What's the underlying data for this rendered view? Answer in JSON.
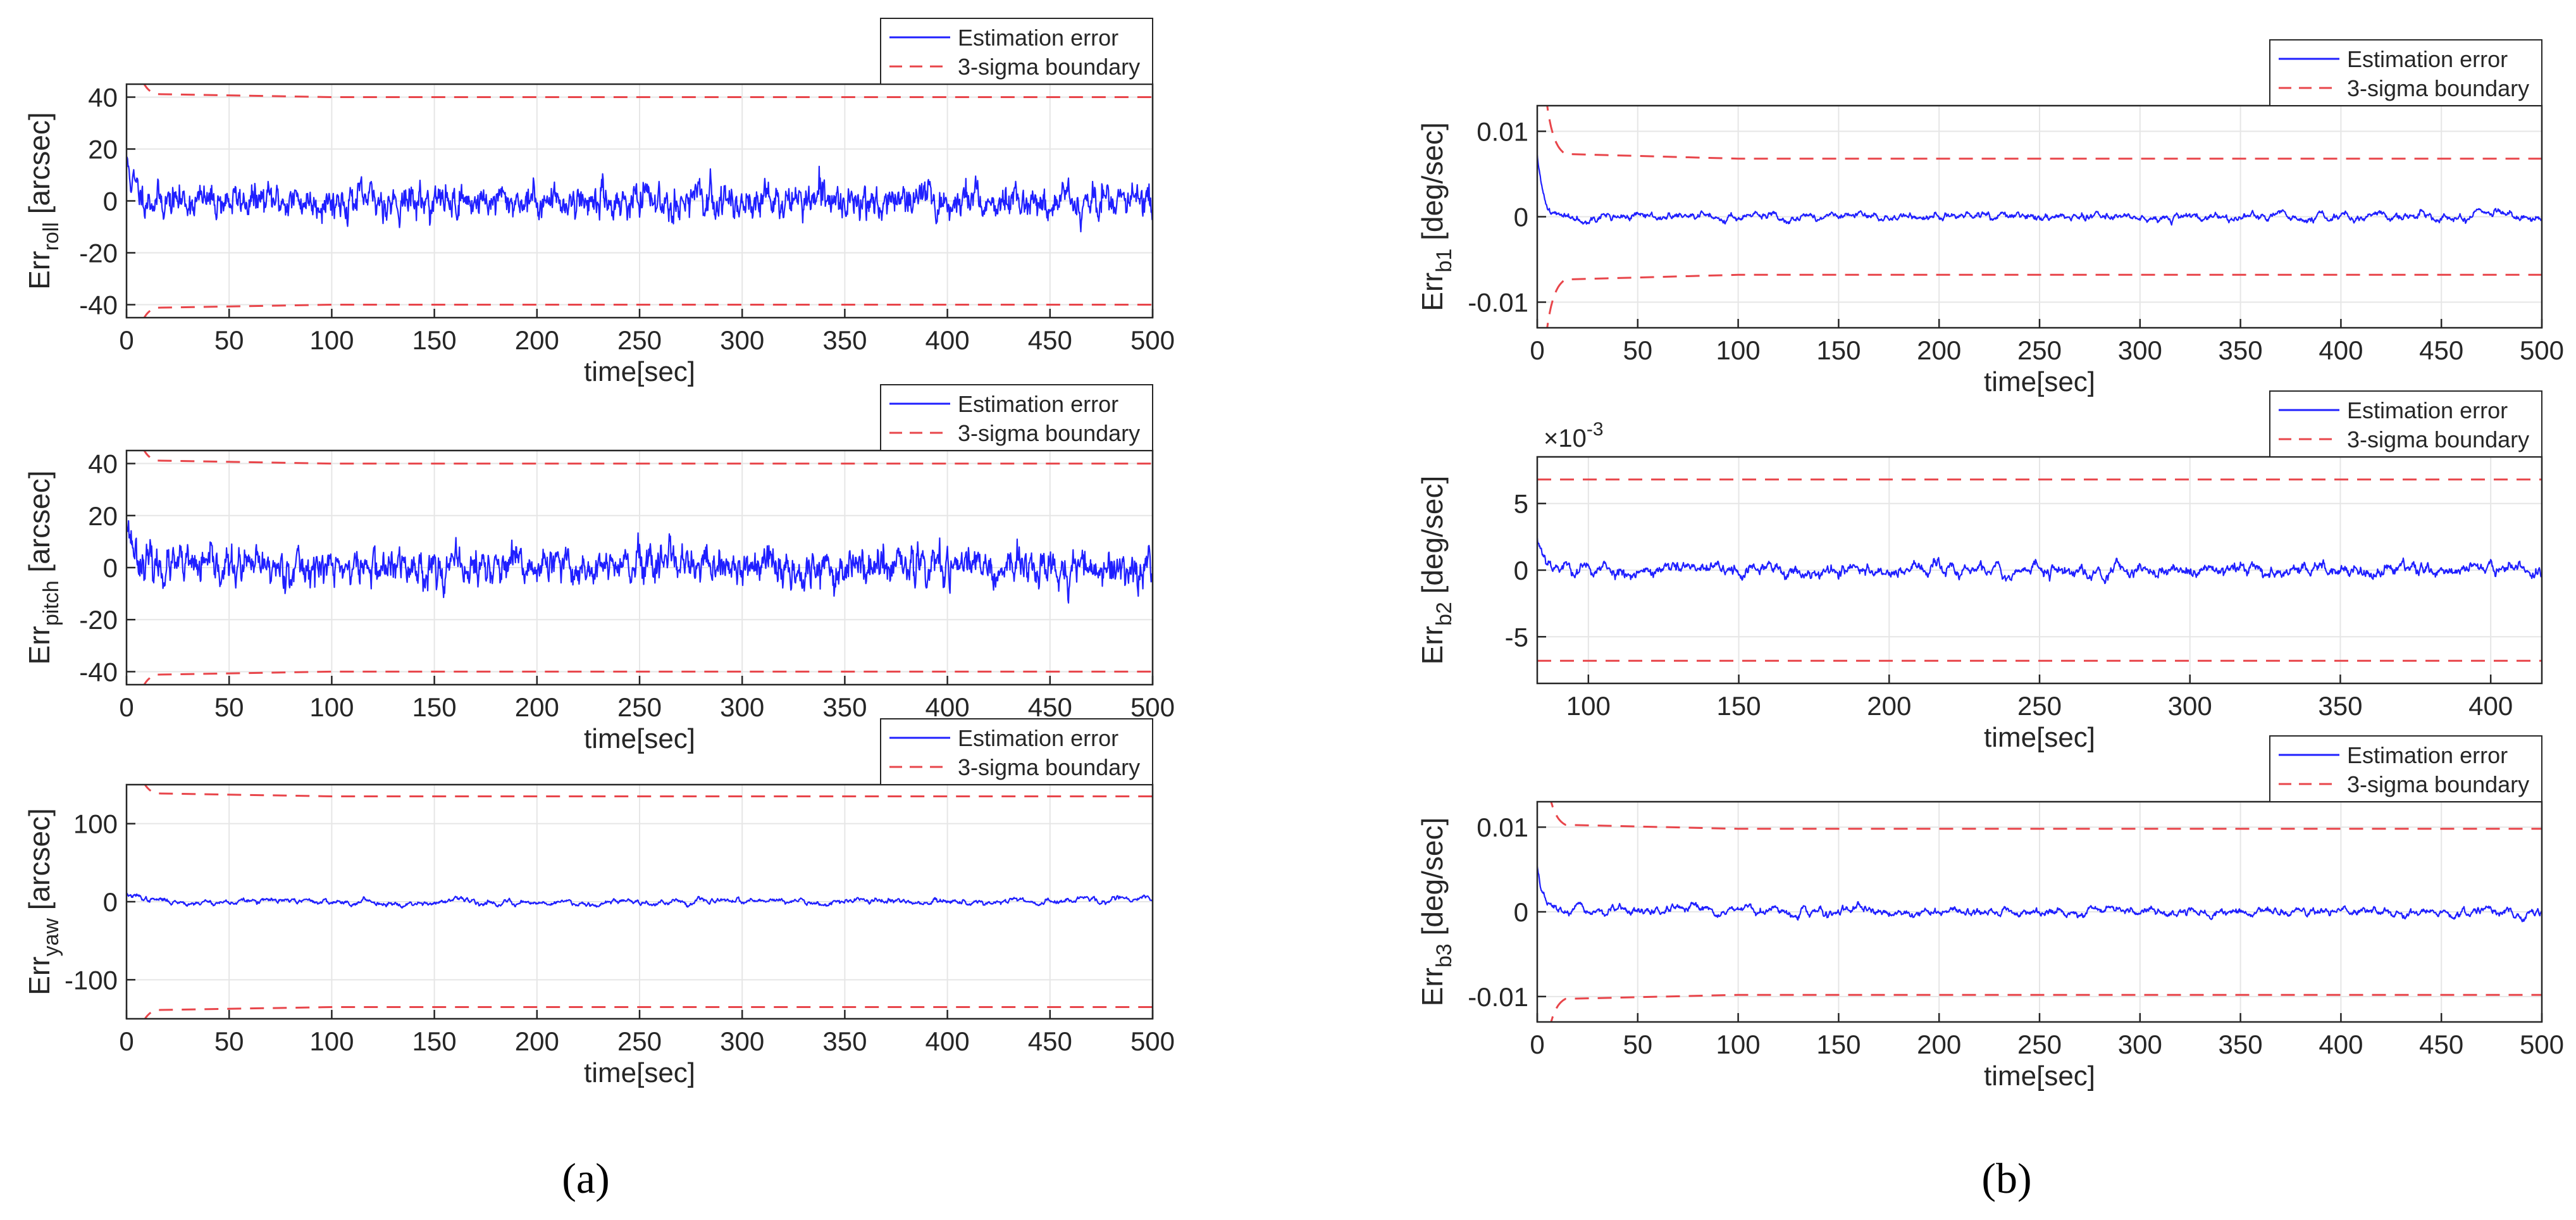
{
  "panel_labels": {
    "a": "(a)",
    "b": "(b)"
  },
  "colors": {
    "error": "#1f1fff",
    "sigma": "#e8454a",
    "grid": "#e6e6e6",
    "axis": "#262626"
  },
  "chart_data": [
    {
      "id": "roll",
      "type": "line",
      "panel": "a",
      "ylabel": {
        "base": "Err",
        "sub": "roll",
        "unit": " [arcsec]"
      },
      "xlabel": "time[sec]",
      "xlim": [
        0,
        500
      ],
      "ylim": [
        -45,
        45
      ],
      "xticks": [
        0,
        50,
        100,
        150,
        200,
        250,
        300,
        350,
        400,
        450,
        500
      ],
      "yticks": [
        -40,
        -20,
        0,
        20,
        40
      ],
      "sigma": 40,
      "sigma_start": 90,
      "sigma_settle": 15,
      "error": {
        "initial": 15,
        "decay": 4,
        "amplitude": 4.5,
        "smooth": 0.35,
        "seed": 11
      },
      "legend": {
        "position": "top-right",
        "entries": [
          "Estimation error",
          "3-sigma boundary"
        ]
      },
      "grid": true
    },
    {
      "id": "pitch",
      "type": "line",
      "panel": "a",
      "ylabel": {
        "base": "Err",
        "sub": "pitch",
        "unit": " [arcsec]"
      },
      "xlabel": "time[sec]",
      "xlim": [
        0,
        500
      ],
      "ylim": [
        -45,
        45
      ],
      "xticks": [
        0,
        50,
        100,
        150,
        200,
        250,
        300,
        350,
        400,
        450,
        500
      ],
      "yticks": [
        -40,
        -20,
        0,
        20,
        40
      ],
      "sigma": 40,
      "sigma_start": 90,
      "sigma_settle": 15,
      "error": {
        "initial": 20,
        "decay": 4,
        "amplitude": 5,
        "smooth": 0.35,
        "seed": 23
      },
      "legend": {
        "position": "top-right",
        "entries": [
          "Estimation error",
          "3-sigma boundary"
        ]
      },
      "grid": true
    },
    {
      "id": "yaw",
      "type": "line",
      "panel": "a",
      "ylabel": {
        "base": "Err",
        "sub": "yaw",
        "unit": " [arcsec]"
      },
      "xlabel": "time[sec]",
      "xlim": [
        0,
        500
      ],
      "ylim": [
        -150,
        150
      ],
      "xticks": [
        0,
        50,
        100,
        150,
        200,
        250,
        300,
        350,
        400,
        450,
        500
      ],
      "yticks": [
        -100,
        0,
        100
      ],
      "sigma": 135,
      "sigma_start": 300,
      "sigma_settle": 15,
      "error": {
        "initial": 10,
        "decay": 8,
        "amplitude": 8,
        "smooth": 0.08,
        "seed": 37
      },
      "legend": {
        "position": "top-right",
        "entries": [
          "Estimation error",
          "3-sigma boundary"
        ]
      },
      "grid": true
    },
    {
      "id": "b1",
      "type": "line",
      "panel": "b",
      "ylabel": {
        "base": "Err",
        "sub": "b1",
        "unit": " [deg/sec]"
      },
      "xlabel": "time[sec]",
      "xlim": [
        0,
        500
      ],
      "ylim": [
        -0.013,
        0.013
      ],
      "xticks": [
        0,
        50,
        100,
        150,
        200,
        250,
        300,
        350,
        400,
        450,
        500
      ],
      "yticks": [
        -0.01,
        0,
        0.01
      ],
      "sigma": 0.0068,
      "sigma_start": 0.03,
      "sigma_settle": 15,
      "error": {
        "initial": 0.007,
        "decay": 3,
        "amplitude": 0.0007,
        "smooth": 0.12,
        "seed": 41
      },
      "legend": {
        "position": "top-right",
        "entries": [
          "Estimation error",
          "3-sigma boundary"
        ]
      },
      "grid": true
    },
    {
      "id": "b2",
      "type": "line",
      "panel": "b",
      "ylabel": {
        "base": "Err",
        "sub": "b2",
        "unit": " [deg/sec]"
      },
      "xlabel": "time[sec]",
      "multiplier": "×10",
      "multiplier_exp": "-3",
      "xlim": [
        83,
        417
      ],
      "ylim": [
        -8.5,
        8.5
      ],
      "xticks": [
        100,
        150,
        200,
        250,
        300,
        350,
        400
      ],
      "yticks": [
        -5,
        0,
        5
      ],
      "sigma": 6.8,
      "sigma_start": 6.8,
      "sigma_settle": 1,
      "error": {
        "initial": 2.2,
        "decay": 4,
        "amplitude": 0.8,
        "smooth": 0.12,
        "seed": 53
      },
      "legend": {
        "position": "top-right",
        "entries": [
          "Estimation error",
          "3-sigma boundary"
        ]
      },
      "grid": true
    },
    {
      "id": "b3",
      "type": "line",
      "panel": "b",
      "ylabel": {
        "base": "Err",
        "sub": "b3",
        "unit": " [deg/sec]"
      },
      "xlabel": "time[sec]",
      "xlim": [
        0,
        500
      ],
      "ylim": [
        -0.013,
        0.013
      ],
      "xticks": [
        0,
        50,
        100,
        150,
        200,
        250,
        300,
        350,
        400,
        450,
        500
      ],
      "yticks": [
        -0.01,
        0,
        0.01
      ],
      "sigma": 0.0098,
      "sigma_start": 0.03,
      "sigma_settle": 15,
      "error": {
        "initial": 0.0055,
        "decay": 3,
        "amplitude": 0.0009,
        "smooth": 0.1,
        "seed": 67
      },
      "legend": {
        "position": "top-right",
        "entries": [
          "Estimation error",
          "3-sigma boundary"
        ]
      },
      "grid": true
    }
  ]
}
